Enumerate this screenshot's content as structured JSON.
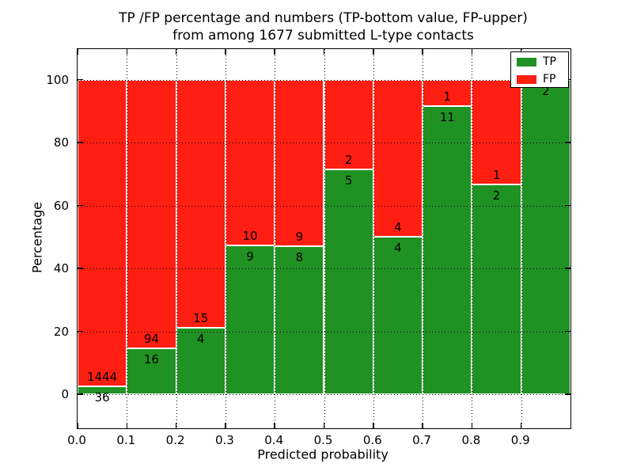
{
  "title": {
    "line1": "TP /FP percentage and numbers (TP-bottom value, FP-upper)",
    "line2": "from among 1677 submitted L-type contacts"
  },
  "legend": {
    "items": [
      {
        "label": "TP",
        "color": "#209224"
      },
      {
        "label": "FP",
        "color": "#ff1e12"
      }
    ]
  },
  "colors": {
    "tp": "#209224",
    "fp": "#ff1e12",
    "axis": "#000000",
    "background": "#ffffff"
  },
  "chart_data": {
    "type": "bar",
    "stacked": true,
    "normalized_to_percent": true,
    "title": "TP /FP percentage and numbers (TP-bottom value, FP-upper) from among 1677 submitted L-type contacts",
    "xlabel": "Predicted probability",
    "ylabel": "Percentage",
    "total_contacts": 1677,
    "bin_edges": [
      0.0,
      0.1,
      0.2,
      0.3,
      0.4,
      0.5,
      0.6,
      0.7,
      0.8,
      0.9,
      1.0
    ],
    "categories": [
      "0.0-0.1",
      "0.1-0.2",
      "0.2-0.3",
      "0.3-0.4",
      "0.4-0.5",
      "0.5-0.6",
      "0.6-0.7",
      "0.7-0.8",
      "0.8-0.9",
      "0.9-1.0"
    ],
    "series": [
      {
        "name": "TP",
        "counts": [
          36,
          16,
          4,
          9,
          8,
          5,
          4,
          11,
          2,
          2
        ],
        "color": "#209224"
      },
      {
        "name": "FP",
        "counts": [
          1444,
          94,
          15,
          10,
          9,
          2,
          4,
          1,
          1,
          0
        ],
        "color": "#ff1e12"
      }
    ],
    "tp_percent": [
      2.43,
      14.55,
      21.05,
      47.37,
      47.06,
      71.43,
      50.0,
      91.67,
      66.67,
      100.0
    ],
    "xlim": [
      0.0,
      1.0
    ],
    "ylim": [
      -10.8,
      109.7
    ],
    "xticks": {
      "values": [
        0.0,
        0.1,
        0.2,
        0.3,
        0.4,
        0.5,
        0.6,
        0.7,
        0.8,
        0.9
      ],
      "labels": [
        "0.0",
        "0.1",
        "0.2",
        "0.3",
        "0.4",
        "0.5",
        "0.6",
        "0.7",
        "0.8",
        "0.9"
      ]
    },
    "yticks": {
      "values": [
        0,
        20,
        40,
        60,
        80,
        100
      ],
      "labels": [
        "0",
        "20",
        "40",
        "60",
        "80",
        "100"
      ]
    },
    "grid": true,
    "legend_position": "upper right"
  }
}
